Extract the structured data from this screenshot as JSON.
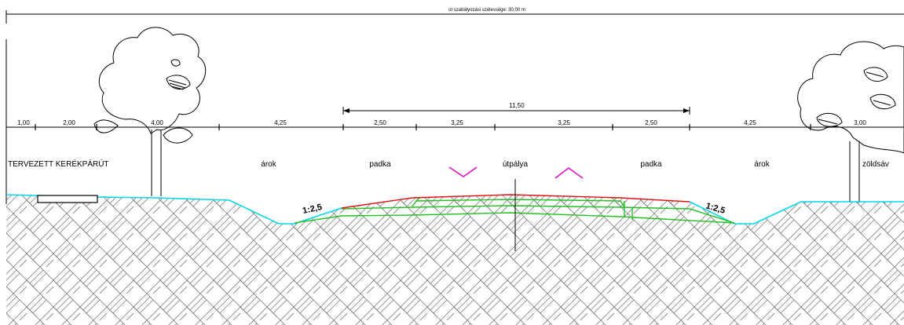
{
  "drawing": {
    "overall_width_label": "út szabályozási szélessége: 30,00 m",
    "pavement_width_label": "11,50",
    "dimensions": [
      "1,00",
      "2,00",
      "4,00",
      "4,25",
      "2,50",
      "3,25",
      "3,25",
      "2,50",
      "4,25",
      "3,00"
    ],
    "zones": {
      "bike_path": "TERVEZETT KERÉKPÁRÚT",
      "ditch_left": "árok",
      "shoulder_left": "padka",
      "carriageway": "útpálya",
      "shoulder_right": "padka",
      "ditch_right": "árok",
      "green_strip": "zöldsáv"
    },
    "slope_left": "1:2,5",
    "slope_right": "1:2,5",
    "colors": {
      "terrain": "#00d8e8",
      "pavement_top": "#e01010",
      "layers": "#22c022",
      "crossfall": "#e010c0",
      "line": "#000000"
    }
  }
}
